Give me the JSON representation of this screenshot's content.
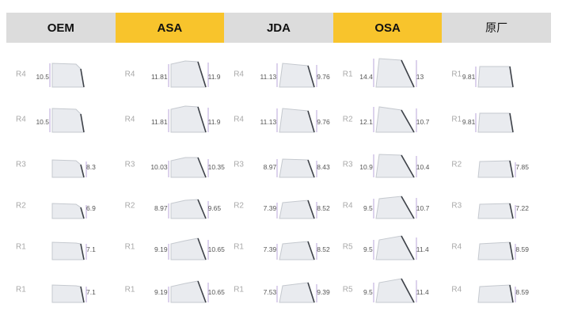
{
  "header": [
    "OEM",
    "ASA",
    "JDA",
    "OSA",
    "原厂"
  ],
  "highlighted": [
    1,
    3
  ],
  "colors": {
    "highlight": "#f8c42c",
    "header_bg": "#dcdcdc",
    "guide": "#b9a4d8",
    "keycap": "#e9ebef"
  },
  "columns": [
    {
      "profile": "OEM",
      "keys": [
        {
          "row": "R4",
          "left": "10.5",
          "right": ""
        },
        {
          "row": "R4",
          "left": "10.5",
          "right": ""
        },
        {
          "row": "R3",
          "left": "",
          "right": "8.3"
        },
        {
          "row": "R2",
          "left": "",
          "right": "6.9"
        },
        {
          "row": "R1",
          "left": "",
          "right": "7.1"
        },
        {
          "row": "R1",
          "left": "",
          "right": "7.1"
        }
      ]
    },
    {
      "profile": "ASA",
      "keys": [
        {
          "row": "R4",
          "left": "11.81",
          "right": "11.9"
        },
        {
          "row": "R4",
          "left": "11.81",
          "right": "11.9"
        },
        {
          "row": "R3",
          "left": "10.03",
          "right": "10.35"
        },
        {
          "row": "R2",
          "left": "8.97",
          "right": "9.65"
        },
        {
          "row": "R1",
          "left": "9.19",
          "right": "10.65"
        },
        {
          "row": "R1",
          "left": "9.19",
          "right": "10.65"
        }
      ]
    },
    {
      "profile": "JDA",
      "keys": [
        {
          "row": "R4",
          "left": "11.13",
          "right": "9.76"
        },
        {
          "row": "R4",
          "left": "11.13",
          "right": "9.76"
        },
        {
          "row": "R3",
          "left": "8.97",
          "right": "8.43"
        },
        {
          "row": "R2",
          "left": "7.39",
          "right": "8.52"
        },
        {
          "row": "R1",
          "left": "7.39",
          "right": "8.52"
        },
        {
          "row": "R1",
          "left": "7.53",
          "right": "9.39"
        }
      ]
    },
    {
      "profile": "OSA",
      "keys": [
        {
          "row": "R1",
          "left": "14.4",
          "right": "13"
        },
        {
          "row": "R2",
          "left": "12.1",
          "right": "10.7"
        },
        {
          "row": "R3",
          "left": "10.9",
          "right": "10.4"
        },
        {
          "row": "R4",
          "left": "9.5",
          "right": "10.7"
        },
        {
          "row": "R5",
          "left": "9.5",
          "right": "11.4"
        },
        {
          "row": "R5",
          "left": "9.5",
          "right": "11.4"
        }
      ]
    },
    {
      "profile": "原厂",
      "keys": [
        {
          "row": "R1",
          "left": "9.81",
          "right": ""
        },
        {
          "row": "R1",
          "left": "9.81",
          "right": ""
        },
        {
          "row": "R2",
          "left": "",
          "right": "7.85"
        },
        {
          "row": "R3",
          "left": "",
          "right": "7.22"
        },
        {
          "row": "R4",
          "left": "",
          "right": "8.59"
        },
        {
          "row": "R4",
          "left": "",
          "right": "8.59"
        }
      ]
    }
  ]
}
